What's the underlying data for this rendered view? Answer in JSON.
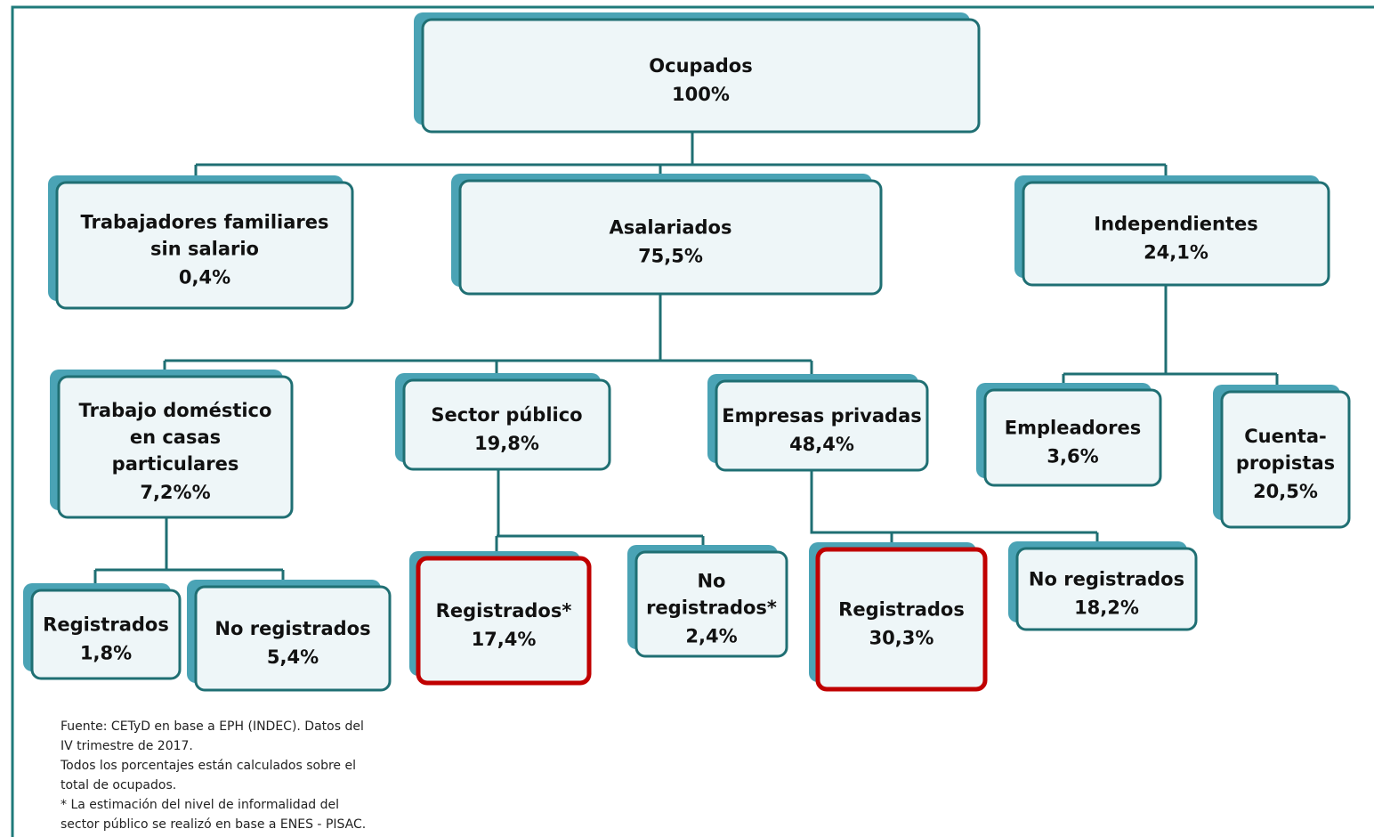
{
  "nodes": [
    {
      "label": [
        "Ocupados"
      ],
      "value": "100%"
    },
    {
      "label": [
        "Trabajadores familiares",
        "sin salario"
      ],
      "value": "0,4%"
    },
    {
      "label": [
        "Asalariados"
      ],
      "value": "75,5%"
    },
    {
      "label": [
        "Independientes"
      ],
      "value": "24,1%"
    },
    {
      "label": [
        "Trabajo doméstico",
        "en casas",
        "particulares"
      ],
      "value": "7,2%%"
    },
    {
      "label": [
        "Sector público"
      ],
      "value": "19,8%"
    },
    {
      "label": [
        "Empresas privadas"
      ],
      "value": "48,4%"
    },
    {
      "label": [
        "Empleadores"
      ],
      "value": "3,6%"
    },
    {
      "label": [
        "Cuenta-",
        "propistas"
      ],
      "value": "20,5%"
    },
    {
      "label": [
        "Registrados"
      ],
      "value": "1,8%"
    },
    {
      "label": [
        "No registrados"
      ],
      "value": "5,4%"
    },
    {
      "label": [
        "Registrados*"
      ],
      "value": "17,4%"
    },
    {
      "label": [
        "No",
        "registrados*"
      ],
      "value": "2,4%"
    },
    {
      "label": [
        "Registrados"
      ],
      "value": "30,3%"
    },
    {
      "label": [
        "No registrados"
      ],
      "value": "18,2%"
    }
  ],
  "footnote": [
    "Fuente: CETyD en base a EPH (INDEC). Datos del",
    "IV trimestre de 2017.",
    "Todos los porcentajes están calculados sobre el",
    "total de ocupados.",
    "* La estimación del nivel de informalidad del",
    "sector público se realizó en base a ENES - PISAC."
  ]
}
